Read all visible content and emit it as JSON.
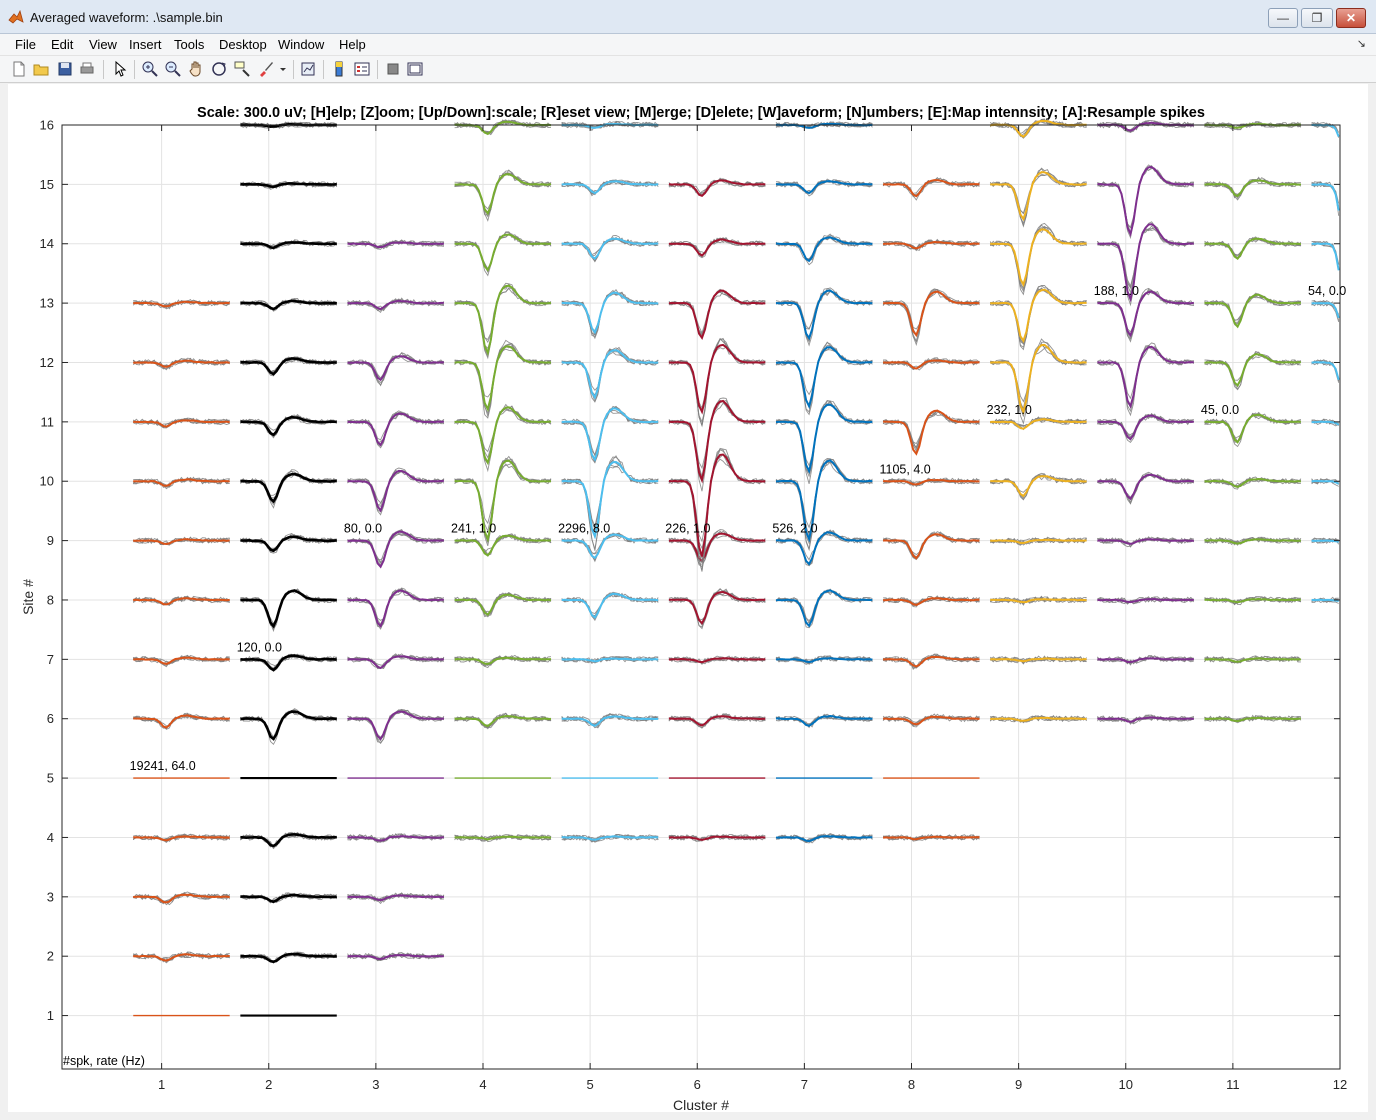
{
  "window": {
    "title": "Averaged waveform: .\\sample.bin"
  },
  "menu": [
    "File",
    "Edit",
    "View",
    "Insert",
    "Tools",
    "Desktop",
    "Window",
    "Help"
  ],
  "toolbar_icons": [
    "new-figure-icon",
    "open-file-icon",
    "save-icon",
    "print-icon",
    "edit-plot-icon",
    "zoom-in-icon",
    "zoom-out-icon",
    "pan-icon",
    "rotate-icon",
    "data-cursor-icon",
    "brush-icon",
    "brush-dropdown-icon",
    "link-plot-icon",
    "colorbar-icon",
    "legend-icon",
    "hide-plot-tools-icon",
    "show-plot-tools-icon"
  ],
  "chart_data": {
    "type": "line",
    "title": "Scale: 300.0 uV; [H]elp; [Z]oom; [Up/Down]:scale; [R]eset view; [M]erge; [D]elete; [W]aveform; [N]umbers; [E]:Map intennsity; [A]:Resample spikes",
    "xlabel": "Cluster #",
    "ylabel": "Site #",
    "xlim": [
      0.07,
      12
    ],
    "ylim": [
      0.1,
      16
    ],
    "xticks": [
      1,
      2,
      3,
      4,
      5,
      6,
      7,
      8,
      9,
      10,
      11,
      12
    ],
    "yticks": [
      1,
      2,
      3,
      4,
      5,
      6,
      7,
      8,
      9,
      10,
      11,
      12,
      13,
      14,
      15,
      16
    ],
    "grid": true,
    "corner_label": "#spk, rate (Hz)",
    "clusters": [
      {
        "id": 1,
        "color": "#d95319",
        "sites": [
          1,
          2,
          3,
          4,
          5,
          6,
          7,
          8,
          9,
          10,
          11,
          12,
          13
        ],
        "amps": [
          0,
          0.08,
          0.1,
          0.05,
          0,
          0.15,
          0.08,
          0.08,
          0.06,
          0.08,
          0.08,
          0.08,
          0.06
        ],
        "label": "19241, 64.0"
      },
      {
        "id": 2,
        "color": "#000000",
        "sites": [
          1,
          2,
          3,
          4,
          5,
          6,
          7,
          8,
          9,
          10,
          11,
          12,
          13,
          14,
          15,
          16
        ],
        "amps": [
          0,
          0.1,
          0.08,
          0.15,
          0,
          0.35,
          0.18,
          0.45,
          0.18,
          0.35,
          0.22,
          0.2,
          0.1,
          0.07,
          0.04,
          0.03
        ],
        "label": "120, 0.0"
      },
      {
        "id": 3,
        "color": "#7e2f8e",
        "sites": [
          2,
          3,
          4,
          5,
          6,
          7,
          8,
          9,
          10,
          11,
          12,
          13,
          14
        ],
        "amps": [
          0.05,
          0.06,
          0.06,
          0,
          0.35,
          0.15,
          0.45,
          0.45,
          0.5,
          0.4,
          0.3,
          0.1,
          0.06
        ],
        "label": "80, 0.0"
      },
      {
        "id": 4,
        "color": "#77ac30",
        "sites": [
          4,
          5,
          6,
          7,
          8,
          9,
          10,
          11,
          12,
          13,
          14,
          15,
          16
        ],
        "amps": [
          0.03,
          0,
          0.12,
          0.08,
          0.25,
          0.25,
          1.0,
          0.7,
          0.8,
          0.85,
          0.45,
          0.5,
          0.15
        ],
        "label": "241, 1.0"
      },
      {
        "id": 5,
        "color": "#4dbeee",
        "sites": [
          4,
          5,
          6,
          7,
          8,
          9,
          10,
          11,
          12,
          13,
          14,
          15,
          16
        ],
        "amps": [
          0.04,
          0,
          0.12,
          0.03,
          0.3,
          0.3,
          0.95,
          0.65,
          0.6,
          0.5,
          0.25,
          0.15,
          0.05
        ],
        "label": "2296, 8.0"
      },
      {
        "id": 6,
        "color": "#a2142f",
        "sites": [
          4,
          5,
          6,
          7,
          8,
          9,
          10,
          11,
          12,
          13,
          14,
          15
        ],
        "amps": [
          0.04,
          0,
          0.12,
          0.05,
          0.4,
          0.35,
          1.3,
          1.0,
          0.85,
          0.6,
          0.2,
          0.2
        ],
        "label": "226, 1.0"
      },
      {
        "id": 7,
        "color": "#0072bd",
        "sites": [
          4,
          5,
          6,
          7,
          8,
          9,
          10,
          11,
          12,
          13,
          14,
          15,
          16
        ],
        "amps": [
          0.06,
          0,
          0.12,
          0.05,
          0.45,
          0.4,
          1.0,
          0.85,
          0.75,
          0.6,
          0.3,
          0.15,
          0.05
        ],
        "label": "526, 2.0"
      },
      {
        "id": 8,
        "color": "#d95319",
        "sites": [
          4,
          5,
          6,
          7,
          8,
          9,
          10,
          11,
          12,
          13,
          14,
          15
        ],
        "amps": [
          0.03,
          0,
          0.1,
          0.12,
          0.08,
          0.3,
          0.06,
          0.55,
          0.1,
          0.55,
          0.08,
          0.2
        ],
        "label": "1105, 4.0"
      },
      {
        "id": 9,
        "color": "#edb120",
        "sites": [
          6,
          7,
          8,
          9,
          10,
          11,
          12,
          13,
          14,
          15,
          16
        ],
        "amps": [
          0.04,
          0.03,
          0.04,
          0.04,
          0.25,
          0.12,
          0.85,
          0.65,
          0.7,
          0.6,
          0.2
        ],
        "label": "232, 1.0"
      },
      {
        "id": 10,
        "color": "#7e2f8e",
        "sites": [
          6,
          7,
          8,
          9,
          10,
          11,
          12,
          13,
          14,
          15,
          16
        ],
        "amps": [
          0.05,
          0.05,
          0.04,
          0.06,
          0.3,
          0.3,
          0.75,
          0.55,
          0.95,
          0.85,
          0.1
        ],
        "label": "188, 1.0"
      },
      {
        "id": 11,
        "color": "#77ac30",
        "sites": [
          6,
          7,
          8,
          9,
          10,
          11,
          12,
          13,
          14,
          15,
          16
        ],
        "amps": [
          0.04,
          0.04,
          0.04,
          0.05,
          0.1,
          0.35,
          0.4,
          0.4,
          0.25,
          0.2,
          0.05
        ],
        "label": "45, 0.0"
      },
      {
        "id": 12,
        "color": "#4dbeee",
        "sites": [
          8,
          9,
          10,
          11,
          12,
          13,
          14,
          15,
          16
        ],
        "amps": [
          0.03,
          0.04,
          0.1,
          0.1,
          0.6,
          0.5,
          0.9,
          0.9,
          0.4
        ],
        "label": "54, 0.0"
      }
    ]
  }
}
